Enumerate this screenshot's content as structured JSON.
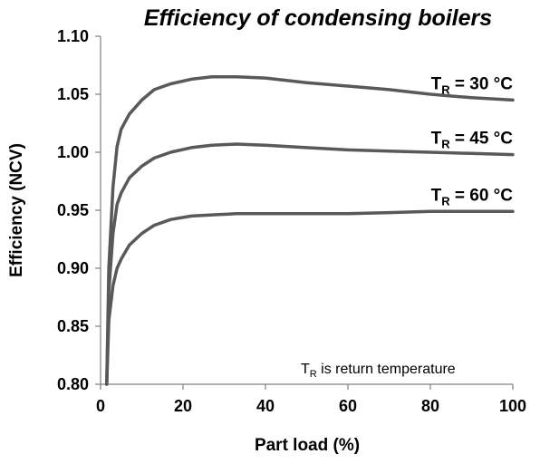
{
  "chart_data": {
    "type": "line",
    "title": "Efficiency of condensing boilers",
    "xlabel": "Part load (%)",
    "ylabel": "Efficiency (NCV)",
    "xlim": [
      0,
      100
    ],
    "ylim": [
      0.8,
      1.1
    ],
    "xticks": [
      "0",
      "20",
      "40",
      "60",
      "80",
      "100"
    ],
    "yticks": [
      "0.80",
      "0.85",
      "0.90",
      "0.95",
      "1.00",
      "1.05",
      "1.10"
    ],
    "grid": false,
    "series": [
      {
        "label_main": "T",
        "label_sub": "R",
        "label_rest": " = 30 °C",
        "color": "#595959",
        "x": [
          1.5,
          2,
          3,
          4,
          5,
          7,
          10,
          13,
          17,
          22,
          27,
          33,
          40,
          50,
          60,
          70,
          80,
          90,
          100
        ],
        "y": [
          0.8,
          0.9,
          0.97,
          1.005,
          1.02,
          1.033,
          1.045,
          1.054,
          1.059,
          1.063,
          1.065,
          1.065,
          1.064,
          1.06,
          1.057,
          1.054,
          1.05,
          1.047,
          1.045
        ]
      },
      {
        "label_main": "T",
        "label_sub": "R",
        "label_rest": " = 45 °C",
        "color": "#595959",
        "x": [
          1.5,
          2,
          3,
          4,
          5,
          7,
          10,
          13,
          17,
          22,
          27,
          33,
          40,
          50,
          60,
          70,
          80,
          90,
          100
        ],
        "y": [
          0.8,
          0.88,
          0.93,
          0.955,
          0.965,
          0.978,
          0.988,
          0.995,
          1.0,
          1.004,
          1.006,
          1.007,
          1.006,
          1.004,
          1.002,
          1.001,
          1.0,
          0.999,
          0.998
        ]
      },
      {
        "label_main": "T",
        "label_sub": "R",
        "label_rest": " = 60 °C",
        "color": "#595959",
        "x": [
          1.5,
          2,
          3,
          4,
          5,
          7,
          10,
          13,
          17,
          22,
          27,
          33,
          40,
          50,
          60,
          70,
          80,
          90,
          100
        ],
        "y": [
          0.8,
          0.855,
          0.885,
          0.9,
          0.908,
          0.92,
          0.93,
          0.937,
          0.942,
          0.945,
          0.946,
          0.947,
          0.947,
          0.947,
          0.947,
          0.948,
          0.949,
          0.949,
          0.949
        ]
      }
    ],
    "note_main": "T",
    "note_sub": "R",
    "note_rest": " is return temperature"
  }
}
